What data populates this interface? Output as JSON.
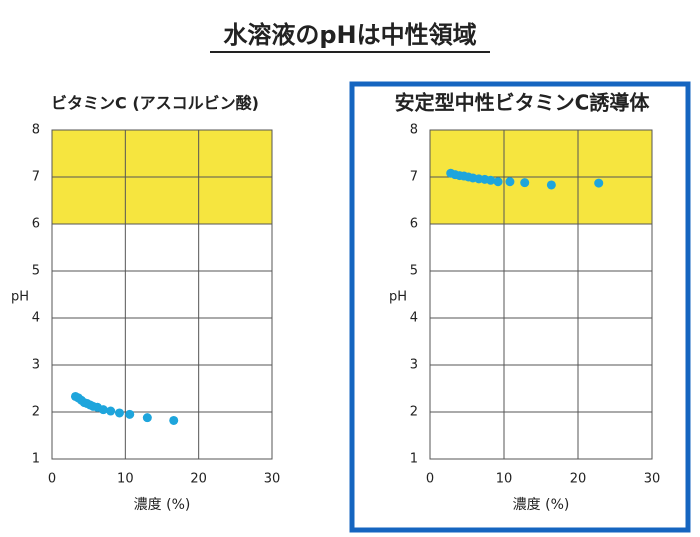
{
  "title": "水溶液のpHは中性領域",
  "chart_data": [
    {
      "type": "scatter",
      "title": "ビタミンC (アスコルビン酸)",
      "x_label": "濃度 (%)",
      "y_label": "pH",
      "xlim": [
        0,
        30
      ],
      "ylim": [
        1,
        8
      ],
      "xticks": [
        0,
        10,
        20,
        30
      ],
      "yticks": [
        1,
        2,
        3,
        4,
        5,
        6,
        7,
        8
      ],
      "grid": true,
      "highlight_band": {
        "range": [
          6,
          8
        ],
        "color": "#f6e53f"
      },
      "series": [
        {
          "color": "#1ea5dc",
          "x": [
            3.2,
            3.6,
            4,
            4.4,
            4.8,
            5.2,
            5.6,
            6.2,
            7,
            8,
            9.2,
            10.6,
            13,
            16.6
          ],
          "values": [
            2.33,
            2.3,
            2.25,
            2.2,
            2.18,
            2.15,
            2.12,
            2.1,
            2.05,
            2.02,
            1.98,
            1.95,
            1.88,
            1.82
          ]
        }
      ]
    },
    {
      "type": "scatter",
      "title": "安定型中性ビタミンC誘導体",
      "x_label": "濃度 (%)",
      "y_label": "pH",
      "xlim": [
        0,
        30
      ],
      "ylim": [
        1,
        8
      ],
      "xticks": [
        0,
        10,
        20,
        30
      ],
      "yticks": [
        1,
        2,
        3,
        4,
        5,
        6,
        7,
        8
      ],
      "grid": true,
      "highlight_band": {
        "range": [
          6,
          8
        ],
        "color": "#f6e53f"
      },
      "border_color": "#1565c0",
      "series": [
        {
          "color": "#1ea5dc",
          "x": [
            2.8,
            3.4,
            4,
            4.6,
            5.2,
            5.8,
            6.6,
            7.4,
            8.2,
            9.2,
            10.8,
            12.8,
            16.4,
            22.8
          ],
          "values": [
            7.08,
            7.05,
            7.03,
            7.02,
            7.0,
            6.98,
            6.96,
            6.95,
            6.93,
            6.9,
            6.9,
            6.88,
            6.83,
            6.87
          ]
        }
      ]
    }
  ]
}
